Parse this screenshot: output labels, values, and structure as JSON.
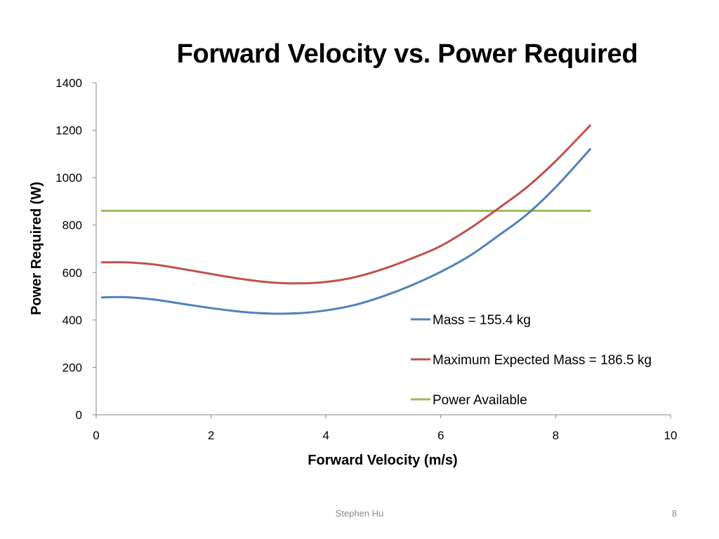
{
  "slide": {
    "footer_author": "Stephen Hu",
    "page_number": "8"
  },
  "chart_data": {
    "type": "line",
    "title": "Forward Velocity vs. Power Required",
    "xlabel": "Forward Velocity (m/s)",
    "ylabel": "Power Required (W)",
    "xlim": [
      0,
      10
    ],
    "ylim": [
      0,
      1400
    ],
    "xticks": [
      0,
      2,
      4,
      6,
      8,
      10
    ],
    "yticks": [
      0,
      200,
      400,
      600,
      800,
      1000,
      1200,
      1400
    ],
    "grid": false,
    "legend_position": "right",
    "series": [
      {
        "name": "Mass = 155.4 kg",
        "color": "#4f81bd",
        "x": [
          0.1,
          0.5,
          1.0,
          1.5,
          2.0,
          2.5,
          3.0,
          3.5,
          4.0,
          4.5,
          5.0,
          5.5,
          6.0,
          6.5,
          7.0,
          7.5,
          8.0,
          8.6
        ],
        "y": [
          495,
          496,
          486,
          468,
          450,
          435,
          427,
          428,
          440,
          463,
          500,
          547,
          603,
          670,
          755,
          845,
          960,
          1120
        ]
      },
      {
        "name": "Maximum Expected Mass = 186.5 kg",
        "color": "#c0504d",
        "x": [
          0.1,
          0.5,
          1.0,
          1.5,
          2.0,
          2.5,
          3.0,
          3.5,
          4.0,
          4.5,
          5.0,
          5.5,
          6.0,
          6.5,
          7.0,
          7.5,
          8.0,
          8.6
        ],
        "y": [
          643,
          643,
          634,
          615,
          594,
          574,
          559,
          554,
          560,
          580,
          615,
          660,
          712,
          785,
          870,
          960,
          1070,
          1220
        ]
      },
      {
        "name": "Power Available",
        "color": "#9bbb59",
        "x": [
          0.1,
          8.6
        ],
        "y": [
          860,
          860
        ]
      }
    ]
  }
}
